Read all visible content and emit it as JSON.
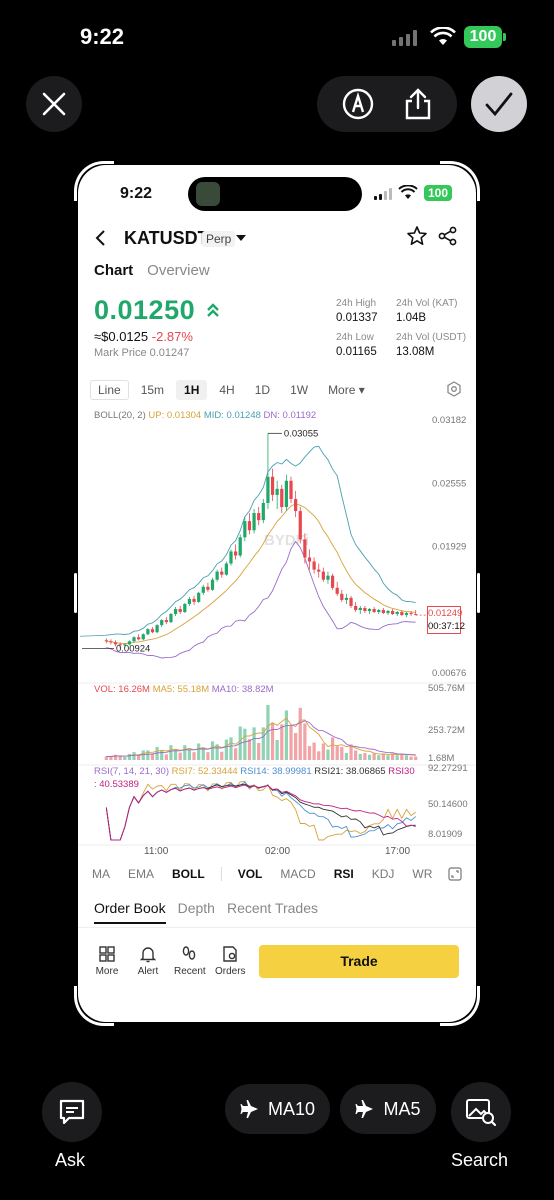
{
  "os_status": {
    "time": "9:22",
    "battery": "100"
  },
  "app_status": {
    "time": "9:22",
    "battery": "100"
  },
  "header": {
    "pair": "KATUSDT",
    "contract_type": "Perp"
  },
  "top_tabs": [
    "Chart",
    "Overview"
  ],
  "price": {
    "last": "0.01250",
    "usd": "≈$0.0125",
    "change": "-2.87%",
    "mark_price": "Mark Price 0.01247"
  },
  "stats": {
    "high_label": "24h High",
    "high": "0.01337",
    "vol_kat_label": "24h Vol (KAT)",
    "vol_kat": "1.04B",
    "low_label": "24h Low",
    "low": "0.01165",
    "vol_usdt_label": "24h Vol (USDT)",
    "vol_usdt": "13.08M"
  },
  "intervals": [
    "Line",
    "15m",
    "1H",
    "4H",
    "1D",
    "1W",
    "More"
  ],
  "selected_interval": "1H",
  "boll_legend": {
    "name": "BOLL(20, 2)",
    "up": "UP: 0.01304",
    "mid": "MID: 0.01248",
    "dn": "DN: 0.01192"
  },
  "vol_legend": {
    "vol": "VOL: 16.26M",
    "ma5": "MA5: 55.18M",
    "ma10": "MA10: 38.82M"
  },
  "rsi_legend": {
    "params": "RSI(7, 14, 21, 30)",
    "rsi7": "RSI7: 52.33444",
    "rsi14": "RSI14: 38.99981",
    "rsi21": "RSI21: 38.06865",
    "rsi30_label": "RSI30",
    "rsi30_value": ": 40.53389"
  },
  "price_tag": {
    "price": "0.01249",
    "countdown": "00:37:12"
  },
  "watermark": "BYDFi",
  "chart_data": {
    "type": "candlestick",
    "price_axis": [
      "0.03182",
      "0.02555",
      "0.01929",
      "0.01249",
      "0.00676"
    ],
    "high_label": "0.03055",
    "low_label": "0.00924",
    "volume_axis": [
      "505.76M",
      "253.72M",
      "1.68M"
    ],
    "rsi_axis": [
      "92.27291",
      "50.14600",
      "8.01909"
    ],
    "time_axis": [
      "11:00",
      "02:00",
      "17:00"
    ],
    "candles": [
      [
        0.01,
        0.0102,
        0.0097,
        0.0099
      ],
      [
        0.0099,
        0.0101,
        0.0096,
        0.0098
      ],
      [
        0.0098,
        0.01,
        0.0094,
        0.0096
      ],
      [
        0.0096,
        0.0098,
        0.0092,
        0.0095
      ],
      [
        0.0095,
        0.0097,
        0.0093,
        0.0096
      ],
      [
        0.0096,
        0.01,
        0.0095,
        0.0099
      ],
      [
        0.0099,
        0.0104,
        0.0098,
        0.0103
      ],
      [
        0.0103,
        0.0106,
        0.01,
        0.0101
      ],
      [
        0.0101,
        0.0107,
        0.01,
        0.0106
      ],
      [
        0.0106,
        0.0112,
        0.0105,
        0.0111
      ],
      [
        0.0111,
        0.0113,
        0.0107,
        0.0108
      ],
      [
        0.0108,
        0.0116,
        0.0107,
        0.0115
      ],
      [
        0.0115,
        0.0121,
        0.0113,
        0.012
      ],
      [
        0.012,
        0.0123,
        0.0116,
        0.0118
      ],
      [
        0.0118,
        0.0127,
        0.0117,
        0.0126
      ],
      [
        0.0126,
        0.0133,
        0.0124,
        0.0131
      ],
      [
        0.0131,
        0.0134,
        0.0126,
        0.0128
      ],
      [
        0.0128,
        0.0137,
        0.0127,
        0.0136
      ],
      [
        0.0136,
        0.0143,
        0.0134,
        0.0141
      ],
      [
        0.0141,
        0.0144,
        0.0135,
        0.0138
      ],
      [
        0.0138,
        0.0148,
        0.0137,
        0.0147
      ],
      [
        0.0147,
        0.0155,
        0.0145,
        0.0153
      ],
      [
        0.0153,
        0.0157,
        0.0148,
        0.015
      ],
      [
        0.015,
        0.0162,
        0.0149,
        0.016
      ],
      [
        0.016,
        0.017,
        0.0158,
        0.0168
      ],
      [
        0.0168,
        0.0172,
        0.0162,
        0.0165
      ],
      [
        0.0165,
        0.0178,
        0.0164,
        0.0176
      ],
      [
        0.0176,
        0.019,
        0.0174,
        0.0188
      ],
      [
        0.0188,
        0.0195,
        0.018,
        0.0184
      ],
      [
        0.0184,
        0.0205,
        0.0182,
        0.0202
      ],
      [
        0.0202,
        0.0222,
        0.0198,
        0.0218
      ],
      [
        0.0218,
        0.0226,
        0.0205,
        0.0209
      ],
      [
        0.0209,
        0.023,
        0.0206,
        0.0226
      ],
      [
        0.0226,
        0.0232,
        0.0214,
        0.0219
      ],
      [
        0.0219,
        0.024,
        0.0216,
        0.0236
      ],
      [
        0.0236,
        0.0305,
        0.023,
        0.0262
      ],
      [
        0.0262,
        0.027,
        0.0238,
        0.0244
      ],
      [
        0.0244,
        0.0258,
        0.023,
        0.025
      ],
      [
        0.025,
        0.0254,
        0.0226,
        0.0232
      ],
      [
        0.0232,
        0.0264,
        0.0228,
        0.0258
      ],
      [
        0.0258,
        0.0262,
        0.0236,
        0.024
      ],
      [
        0.024,
        0.0248,
        0.0222,
        0.0228
      ],
      [
        0.0228,
        0.0232,
        0.0196,
        0.02
      ],
      [
        0.02,
        0.0206,
        0.0176,
        0.0182
      ],
      [
        0.0182,
        0.019,
        0.017,
        0.0178
      ],
      [
        0.0178,
        0.0182,
        0.0166,
        0.017
      ],
      [
        0.017,
        0.0176,
        0.0162,
        0.0168
      ],
      [
        0.0168,
        0.0172,
        0.0158,
        0.016
      ],
      [
        0.016,
        0.0168,
        0.0156,
        0.0164
      ],
      [
        0.0164,
        0.0166,
        0.015,
        0.0152
      ],
      [
        0.0152,
        0.0158,
        0.0144,
        0.0146
      ],
      [
        0.0146,
        0.015,
        0.0138,
        0.014
      ],
      [
        0.014,
        0.0146,
        0.0136,
        0.0142
      ],
      [
        0.0142,
        0.0144,
        0.0132,
        0.0134
      ],
      [
        0.0134,
        0.0138,
        0.0128,
        0.013
      ],
      [
        0.013,
        0.0134,
        0.0126,
        0.0132
      ],
      [
        0.0132,
        0.0134,
        0.0127,
        0.0129
      ],
      [
        0.0129,
        0.0132,
        0.0126,
        0.0131
      ],
      [
        0.0131,
        0.0133,
        0.0127,
        0.0128
      ],
      [
        0.0128,
        0.0131,
        0.0126,
        0.013
      ],
      [
        0.013,
        0.0132,
        0.0126,
        0.0127
      ],
      [
        0.0127,
        0.013,
        0.0125,
        0.0129
      ],
      [
        0.0129,
        0.0131,
        0.0125,
        0.0126
      ],
      [
        0.0126,
        0.0129,
        0.0124,
        0.0128
      ],
      [
        0.0128,
        0.013,
        0.0124,
        0.0125
      ],
      [
        0.0125,
        0.0128,
        0.0123,
        0.0127
      ],
      [
        0.0127,
        0.0129,
        0.0124,
        0.0126
      ],
      [
        0.0126,
        0.013,
        0.0125,
        0.0125
      ]
    ]
  },
  "indicators": [
    "MA",
    "EMA",
    "BOLL",
    "VOL",
    "MACD",
    "RSI",
    "KDJ",
    "WR"
  ],
  "active_indicators": [
    "BOLL",
    "VOL",
    "RSI"
  ],
  "book_tabs": [
    "Order Book",
    "Depth",
    "Recent Trades"
  ],
  "actions": [
    "More",
    "Alert",
    "Recent",
    "Orders"
  ],
  "trade_label": "Trade",
  "bottom": {
    "ask": "Ask",
    "ma10": "MA10",
    "ma5": "MA5",
    "search": "Search"
  },
  "colors": {
    "up": "#20a86a",
    "down": "#e5484d",
    "accent": "#f5d142"
  }
}
